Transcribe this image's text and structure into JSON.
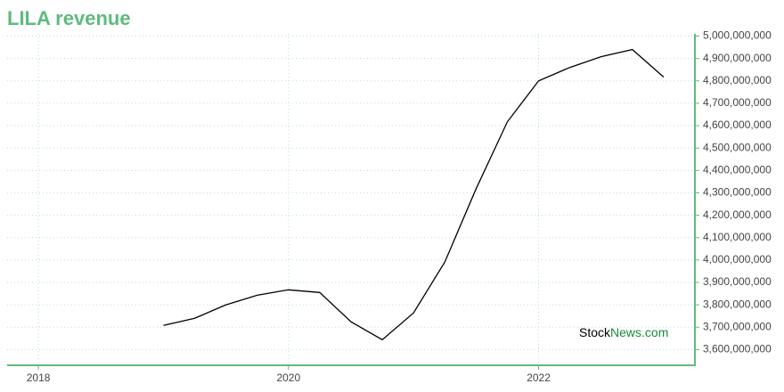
{
  "chart_data": {
    "type": "line",
    "title": "LILA revenue",
    "x": [
      2019,
      2019.25,
      2019.5,
      2019.75,
      2020,
      2020.25,
      2020.5,
      2020.75,
      2021,
      2021.25,
      2021.5,
      2021.75,
      2022,
      2022.25,
      2022.5,
      2022.75,
      2023
    ],
    "series": [
      {
        "name": "LILA revenue",
        "color": "#000000",
        "values": [
          3708000000,
          3740000000,
          3800000000,
          3843000000,
          3867000000,
          3855000000,
          3724000000,
          3644000000,
          3764000000,
          3991000000,
          4318000000,
          4617000000,
          4800000000,
          4860000000,
          4908000000,
          4940000000,
          4817000000
        ]
      }
    ],
    "xlim": [
      2017.75,
      2023.25
    ],
    "xticks": [
      2018,
      2020,
      2022
    ],
    "ylim": [
      3530000000,
      5010000000
    ],
    "yticks": [
      {
        "value": 3600000000,
        "label": "3,600,000,000"
      },
      {
        "value": 3700000000,
        "label": "3,700,000,000"
      },
      {
        "value": 3800000000,
        "label": "3,800,000,000"
      },
      {
        "value": 3900000000,
        "label": "3,900,000,000"
      },
      {
        "value": 4000000000,
        "label": "4,000,000,000"
      },
      {
        "value": 4100000000,
        "label": "4,100,000,000"
      },
      {
        "value": 4200000000,
        "label": "4,200,000,000"
      },
      {
        "value": 4300000000,
        "label": "4,300,000,000"
      },
      {
        "value": 4400000000,
        "label": "4,400,000,000"
      },
      {
        "value": 4500000000,
        "label": "4,500,000,000"
      },
      {
        "value": 4600000000,
        "label": "4,600,000,000"
      },
      {
        "value": 4700000000,
        "label": "4,700,000,000"
      },
      {
        "value": 4800000000,
        "label": "4,800,000,000"
      },
      {
        "value": 4900000000,
        "label": "4,900,000,000"
      },
      {
        "value": 5000000000,
        "label": "5,000,000,000"
      }
    ],
    "grid": true,
    "axis_color": "#5dbb7d",
    "watermark": {
      "part1": "Stock",
      "part2": "News",
      "part3": ".com"
    }
  }
}
